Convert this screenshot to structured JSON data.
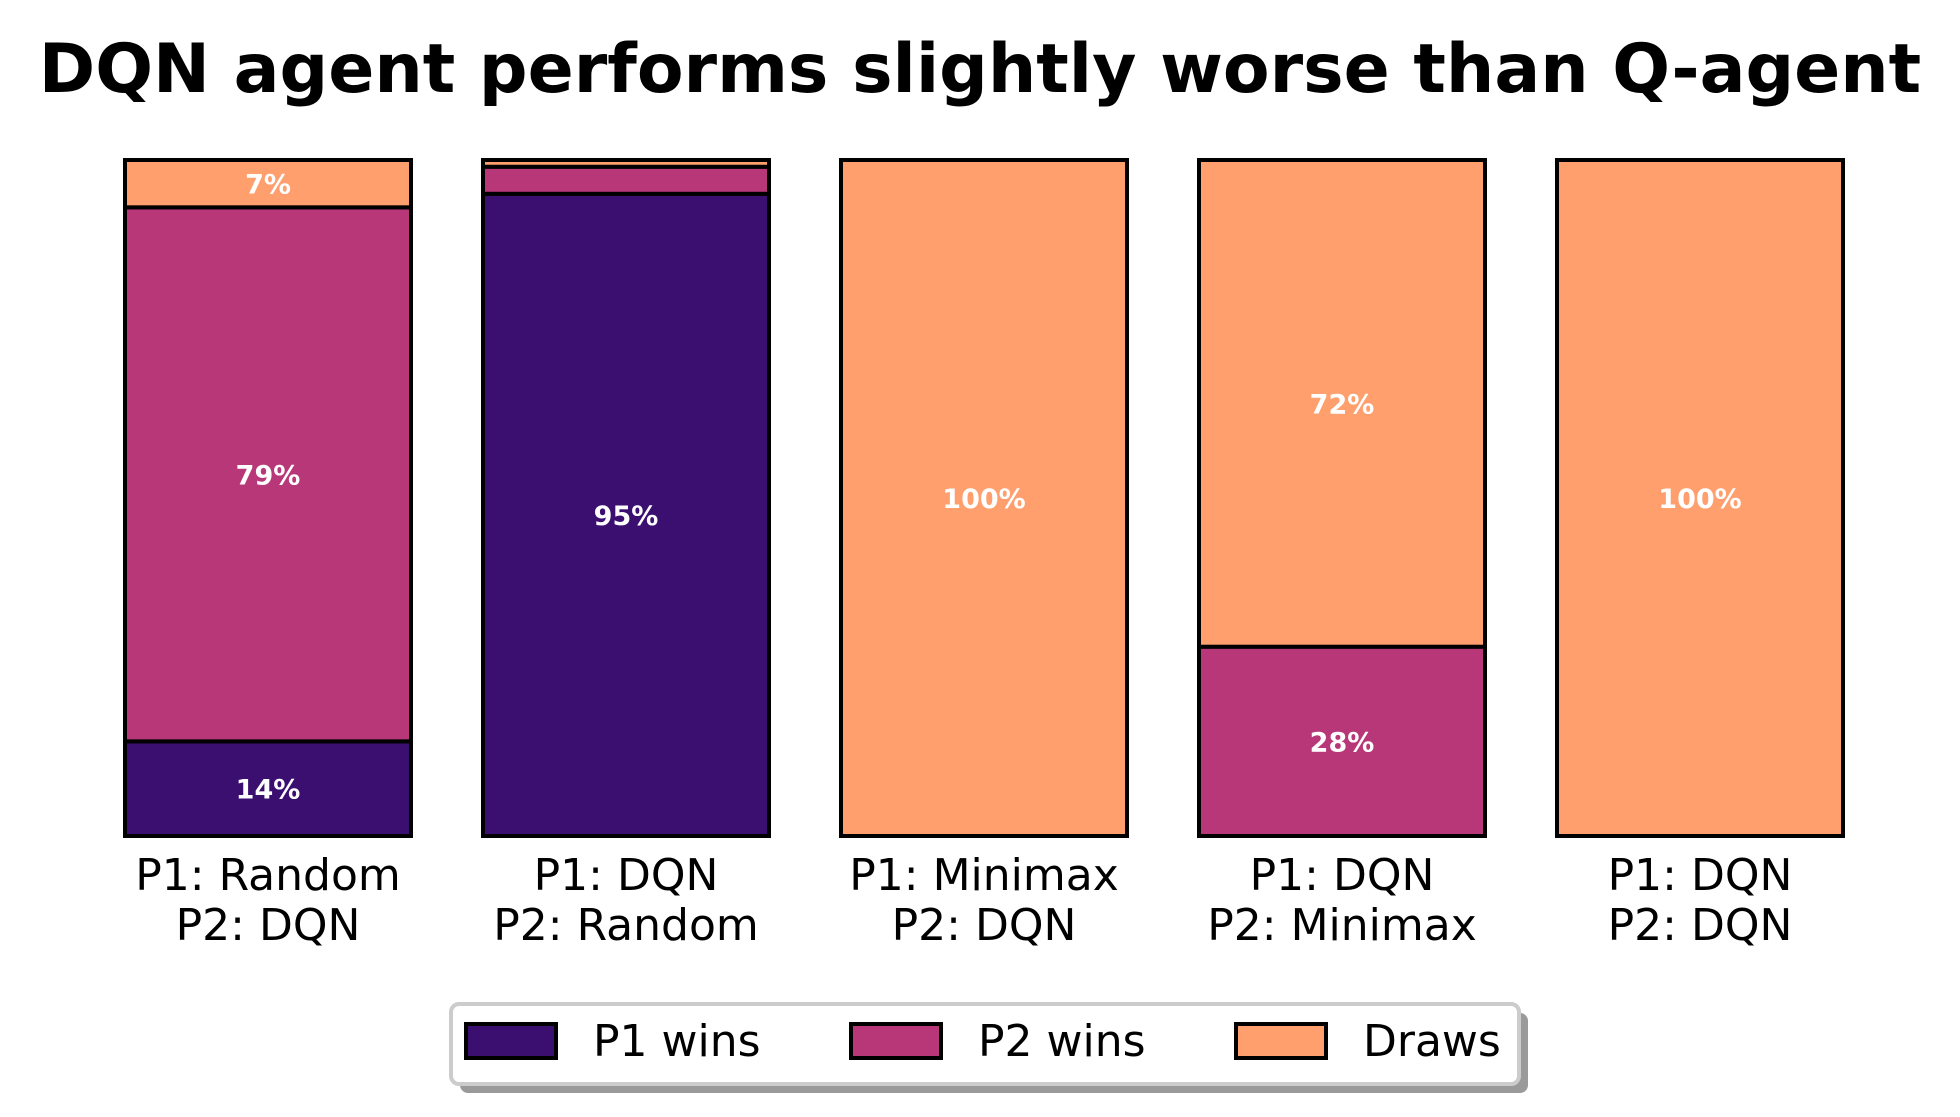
{
  "chart_data": {
    "type": "bar",
    "stacked": true,
    "normalized": true,
    "title": "DQN agent performs slightly worse than Q-agent",
    "categories": [
      [
        "P1: Random",
        "P2: DQN"
      ],
      [
        "P1: DQN",
        "P2: Random"
      ],
      [
        "P1: Minimax",
        "P2: DQN"
      ],
      [
        "P1: DQN",
        "P2: Minimax"
      ],
      [
        "P1: DQN",
        "P2: DQN"
      ]
    ],
    "series": [
      {
        "name": "P1 wins",
        "color": "#3b0f70",
        "values": [
          14,
          95,
          0,
          0,
          0
        ]
      },
      {
        "name": "P2 wins",
        "color": "#b73779",
        "values": [
          79,
          4,
          0,
          28,
          0
        ]
      },
      {
        "name": "Draws",
        "color": "#fe9f6d",
        "values": [
          7,
          1,
          100,
          72,
          100
        ]
      }
    ],
    "data_labels": [
      [
        "14%",
        "79%",
        "7%"
      ],
      [
        "95%",
        "",
        ""
      ],
      [
        "",
        "",
        "100%"
      ],
      [
        "",
        "28%",
        "72%"
      ],
      [
        "",
        "",
        "100%"
      ]
    ],
    "ylim": [
      0,
      100
    ],
    "xlabel": "",
    "ylabel": "",
    "grid": false,
    "legend": {
      "position": "bottom-center",
      "entries": [
        "P1 wins",
        "P2 wins",
        "Draws"
      ]
    }
  }
}
